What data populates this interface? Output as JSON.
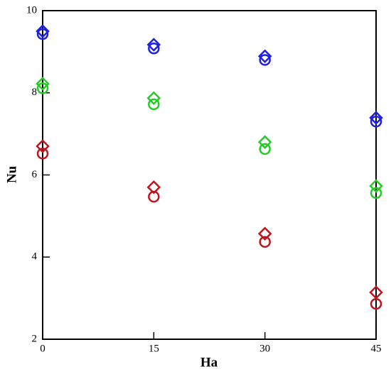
{
  "chart_data": {
    "type": "scatter",
    "xlabel": "Ha",
    "ylabel": "Nu",
    "xlim": [
      0,
      45
    ],
    "xticks": [
      0,
      15,
      30,
      45
    ],
    "ylim": [
      2,
      10
    ],
    "yticks": [
      2,
      4,
      6,
      8,
      10
    ],
    "grid": false,
    "series": [
      {
        "color": "#c0141c",
        "marker": "diamond",
        "x": [
          0,
          15,
          30,
          45
        ],
        "values": [
          6.7,
          5.7,
          4.57,
          3.14
        ]
      },
      {
        "color": "#c0141c",
        "marker": "circle",
        "x": [
          0,
          15,
          30,
          45
        ],
        "values": [
          6.52,
          5.47,
          4.37,
          2.86
        ]
      },
      {
        "color": "#22cc22",
        "marker": "diamond",
        "x": [
          0,
          15,
          30,
          45
        ],
        "values": [
          8.22,
          7.87,
          6.8,
          5.73
        ]
      },
      {
        "color": "#22cc22",
        "marker": "circle",
        "x": [
          0,
          15,
          30,
          45
        ],
        "values": [
          8.11,
          7.72,
          6.63,
          5.56
        ]
      },
      {
        "color": "#2020e0",
        "marker": "diamond",
        "x": [
          0,
          15,
          30,
          45
        ],
        "values": [
          9.5,
          9.17,
          8.89,
          7.39
        ]
      },
      {
        "color": "#2020e0",
        "marker": "circle",
        "x": [
          0,
          15,
          30,
          45
        ],
        "values": [
          9.43,
          9.08,
          8.8,
          7.3
        ]
      }
    ]
  }
}
